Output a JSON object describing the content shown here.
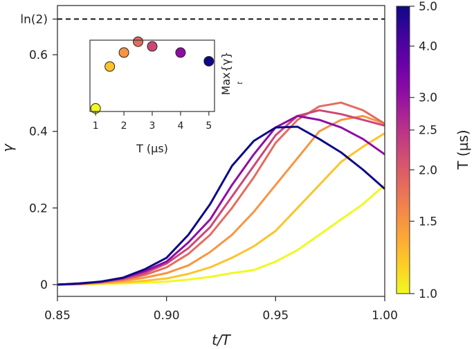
{
  "chart_data": {
    "main": {
      "type": "line",
      "xlabel": "t/T",
      "ylabel": "γ",
      "xlim": [
        0.85,
        1.0
      ],
      "ylim": [
        -0.03,
        0.72
      ],
      "xticks": [
        0.85,
        0.9,
        0.95,
        1.0
      ],
      "xtick_labels": [
        "0.85",
        "0.90",
        "0.95",
        "1.00"
      ],
      "yticks": [
        0,
        0.2,
        0.4,
        0.6,
        0.693
      ],
      "ytick_labels": [
        "0",
        "0.2",
        "0.4",
        "0.6",
        "ln(2)"
      ],
      "reference_line": {
        "label": "ln(2)",
        "value": 0.693,
        "style": "dashed"
      },
      "x": [
        0.85,
        0.86,
        0.87,
        0.88,
        0.89,
        0.9,
        0.91,
        0.92,
        0.93,
        0.94,
        0.95,
        0.96,
        0.97,
        0.98,
        0.99,
        1.0
      ],
      "series": [
        {
          "name": "T=1.0 µs",
          "T": 1.0,
          "color": "#f0f921",
          "values": [
            0.0,
            0.0,
            0.002,
            0.003,
            0.005,
            0.008,
            0.013,
            0.02,
            0.03,
            0.038,
            0.06,
            0.09,
            0.13,
            0.17,
            0.21,
            0.26
          ]
        },
        {
          "name": "T=1.5 µs",
          "T": 1.5,
          "color": "#fdc328",
          "values": [
            0.0,
            0.001,
            0.003,
            0.006,
            0.01,
            0.016,
            0.028,
            0.045,
            0.07,
            0.1,
            0.14,
            0.2,
            0.26,
            0.32,
            0.36,
            0.395
          ]
        },
        {
          "name": "T=2.0 µs",
          "T": 2.0,
          "color": "#f89441",
          "values": [
            0.0,
            0.002,
            0.005,
            0.01,
            0.018,
            0.03,
            0.05,
            0.085,
            0.13,
            0.19,
            0.26,
            0.33,
            0.4,
            0.43,
            0.44,
            0.42
          ]
        },
        {
          "name": "T=2.5 µs",
          "T": 2.5,
          "color": "#e56b5d",
          "values": [
            0.0,
            0.002,
            0.006,
            0.013,
            0.025,
            0.045,
            0.08,
            0.13,
            0.2,
            0.28,
            0.37,
            0.43,
            0.465,
            0.475,
            0.455,
            0.42
          ]
        },
        {
          "name": "T=3.0 µs",
          "T": 3.0,
          "color": "#cb4778",
          "values": [
            0.0,
            0.002,
            0.007,
            0.015,
            0.03,
            0.055,
            0.095,
            0.15,
            0.23,
            0.31,
            0.39,
            0.44,
            0.455,
            0.445,
            0.43,
            0.415
          ]
        },
        {
          "name": "T=4.0 µs",
          "T": 4.0,
          "color": "#8f0da4",
          "values": [
            0.0,
            0.002,
            0.008,
            0.017,
            0.035,
            0.06,
            0.11,
            0.17,
            0.26,
            0.34,
            0.41,
            0.44,
            0.43,
            0.41,
            0.38,
            0.34
          ]
        },
        {
          "name": "T=5.0 µs",
          "T": 5.0,
          "color": "#0d0887",
          "values": [
            0.0,
            0.003,
            0.008,
            0.018,
            0.04,
            0.07,
            0.13,
            0.21,
            0.31,
            0.375,
            0.41,
            0.412,
            0.38,
            0.345,
            0.3,
            0.25
          ]
        }
      ]
    },
    "inset": {
      "type": "scatter",
      "xlabel": "T (µs)",
      "ylabel": "Max{γ}",
      "ylabel_subscript": "t",
      "xlim": [
        0.8,
        5.2
      ],
      "ylim": [
        0.25,
        0.48
      ],
      "xticks": [
        1,
        2,
        3,
        4,
        5
      ],
      "xtick_labels": [
        "1",
        "2",
        "3",
        "4",
        "5"
      ],
      "points": [
        {
          "T": 1.0,
          "value": 0.26,
          "color": "#f0f921"
        },
        {
          "T": 1.5,
          "value": 0.395,
          "color": "#fdc328"
        },
        {
          "T": 2.0,
          "value": 0.44,
          "color": "#f89441"
        },
        {
          "T": 2.5,
          "value": 0.475,
          "color": "#e56b5d"
        },
        {
          "T": 3.0,
          "value": 0.46,
          "color": "#cb4778"
        },
        {
          "T": 4.0,
          "value": 0.44,
          "color": "#8f0da4"
        },
        {
          "T": 5.0,
          "value": 0.412,
          "color": "#0d0887"
        }
      ]
    },
    "colorbar": {
      "label": "T (µs)",
      "range": [
        1.0,
        5.0
      ],
      "scale": "log",
      "ticks": [
        1.0,
        1.5,
        2.0,
        2.5,
        3.0,
        4.0,
        5.0
      ],
      "tick_labels": [
        "1.0",
        "1.5",
        "2.0",
        "2.5",
        "3.0",
        "4.0",
        "5.0"
      ],
      "colormap": "plasma"
    }
  }
}
